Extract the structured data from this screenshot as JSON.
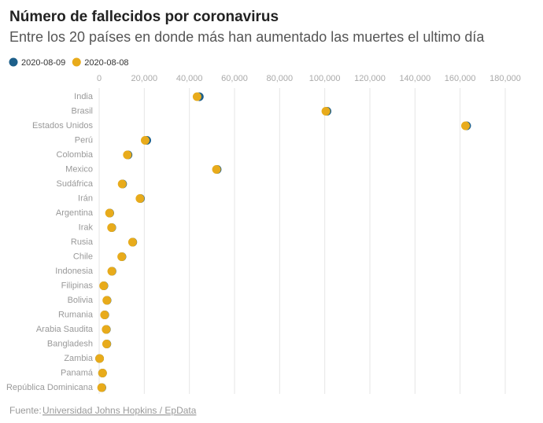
{
  "chart_data": {
    "type": "dot",
    "title": "Número de fallecidos por coronavirus",
    "subtitle": "Entre los 20 países en donde más han aumentado las muertes el ultimo día",
    "categories": [
      "India",
      "Brasil",
      "Estados Unidos",
      "Perú",
      "Colombia",
      "Mexico",
      "Sudáfrica",
      "Irán",
      "Argentina",
      "Irak",
      "Rusia",
      "Chile",
      "Indonesia",
      "Filipinas",
      "Bolivia",
      "Rumania",
      "Arabia Saudita",
      "Bangladesh",
      "Zambia",
      "Panamá",
      "República Dominicana"
    ],
    "series": [
      {
        "name": "2020-08-09",
        "color": "#1d5f8a",
        "values": [
          44400,
          101000,
          162900,
          21100,
          12800,
          52300,
          10400,
          18300,
          4700,
          5600,
          14900,
          10100,
          5700,
          2100,
          3500,
          2500,
          3200,
          3400,
          200,
          1500,
          1200
        ]
      },
      {
        "name": "2020-08-08",
        "color": "#e8ab1b",
        "values": [
          43400,
          100500,
          162400,
          20400,
          12500,
          52000,
          10200,
          18100,
          4600,
          5500,
          14800,
          10000,
          5600,
          2000,
          3400,
          2400,
          3100,
          3300,
          190,
          1500,
          1100
        ]
      }
    ],
    "xlim": [
      0,
      180000
    ],
    "xticks": [
      0,
      {
        "value": 20000,
        "label": "20,000"
      },
      {
        "value": 40000,
        "label": "40,000"
      },
      {
        "value": 60000,
        "label": "60,000"
      },
      {
        "value": 80000,
        "label": "80,000"
      },
      {
        "value": 100000,
        "label": "100,000"
      },
      {
        "value": 120000,
        "label": "120,000"
      },
      {
        "value": 140000,
        "label": "140,000"
      },
      {
        "value": 160000,
        "label": "160,000"
      },
      {
        "value": 180000,
        "label": "180,000"
      }
    ],
    "grid": true,
    "source_label": "Fuente:",
    "source": "Universidad Johns Hopkins / EpData"
  }
}
